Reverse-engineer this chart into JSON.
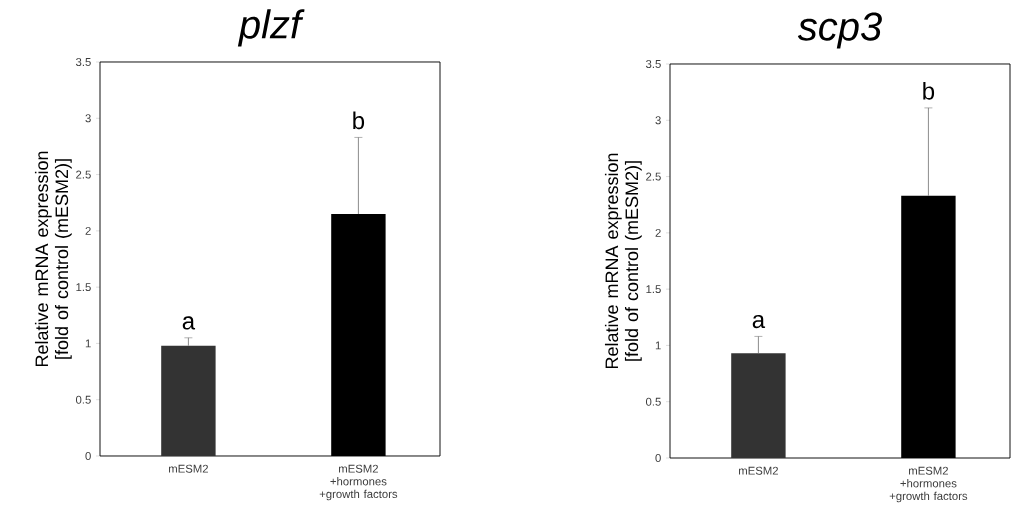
{
  "chart_data": [
    {
      "type": "bar",
      "title": "plzf",
      "ylabel": "Relative mRNA expression [fold of control (mESM2)]",
      "categories": [
        "mESM2",
        "mESM2 +hormones +growth factors"
      ],
      "values": [
        0.98,
        2.15
      ],
      "colors": [
        "#333333",
        "#000000"
      ],
      "errors": [
        0.07,
        0.68
      ],
      "ylim": [
        0,
        3.5
      ],
      "yticks": [
        0,
        0.5,
        1,
        1.5,
        2,
        2.5,
        3,
        3.5
      ],
      "annotations": [
        "a",
        "b"
      ]
    },
    {
      "type": "bar",
      "title": "scp3",
      "ylabel": "Relative mRNA expression [fold of control (mESM2)]",
      "categories": [
        "mESM2",
        "mESM2 +hormones +growth factors"
      ],
      "values": [
        0.93,
        2.33
      ],
      "colors": [
        "#333333",
        "#000000"
      ],
      "errors": [
        0.15,
        0.78
      ],
      "ylim": [
        0,
        3.5
      ],
      "yticks": [
        0,
        0.5,
        1,
        1.5,
        2,
        2.5,
        3,
        3.5
      ],
      "annotations": [
        "a",
        "b"
      ]
    }
  ]
}
